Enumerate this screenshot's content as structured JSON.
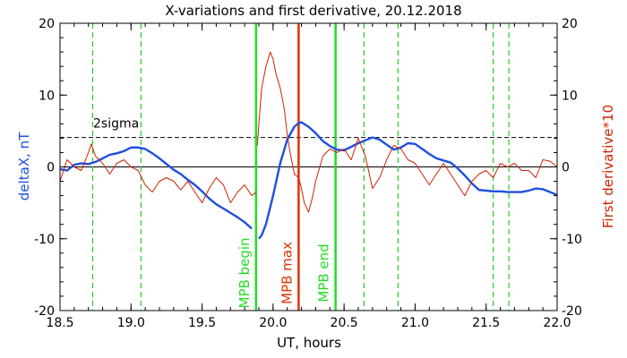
{
  "chart_data": {
    "type": "line",
    "title": "X-variations and first derivative, 20.12.2018",
    "xlabel": "UT, hours",
    "ylabel_left": "deltaX, nT",
    "ylabel_right": "First derivative*10",
    "xlim": [
      18.5,
      22.0
    ],
    "ylim_left": [
      -20,
      20
    ],
    "ylim_right": [
      -20,
      20
    ],
    "x_ticks": [
      "18.5",
      "19.0",
      "19.5",
      "20.0",
      "20.5",
      "21.0",
      "21.5",
      "22.0"
    ],
    "y_ticks_left": [
      "20",
      "10",
      "0",
      "-10",
      "-20"
    ],
    "y_ticks_right": [
      "20",
      "10",
      "0",
      "-10",
      "-20"
    ],
    "threshold": {
      "label": "2sigma",
      "value": 4.1
    },
    "zero_line": 0,
    "series": [
      {
        "color": "#1f4fe0",
        "axis": "left",
        "segments": [
          {
            "x": [
              18.5,
              18.55,
              18.6,
              18.65,
              18.7,
              18.75,
              18.8,
              18.85,
              18.9,
              18.95,
              19.0,
              19.05,
              19.1,
              19.15,
              19.2,
              19.25,
              19.3,
              19.35,
              19.4,
              19.45,
              19.5,
              19.55,
              19.6,
              19.65,
              19.7,
              19.75,
              19.8,
              19.85
            ],
            "y": [
              -0.3,
              -0.5,
              0.3,
              0.5,
              0.4,
              0.7,
              1.2,
              1.7,
              1.9,
              2.2,
              2.7,
              2.7,
              2.5,
              1.9,
              1.2,
              0.4,
              -0.4,
              -1.0,
              -1.8,
              -2.5,
              -3.4,
              -4.4,
              -5.2,
              -5.8,
              -6.4,
              -7.0,
              -7.7,
              -8.6
            ]
          },
          {
            "x": [
              19.9,
              19.92,
              19.95,
              20.0,
              20.05,
              20.1,
              20.15,
              20.18,
              20.2,
              20.25,
              20.3,
              20.35,
              20.4,
              20.45,
              20.5,
              20.55,
              20.6,
              20.65,
              20.7,
              20.75,
              20.8,
              20.85,
              20.9,
              20.95,
              21.0,
              21.05,
              21.1,
              21.15,
              21.2,
              21.25,
              21.3,
              21.35,
              21.4,
              21.45,
              21.5,
              21.55,
              21.6,
              21.65,
              21.7,
              21.75,
              21.8,
              21.85,
              21.9,
              21.95,
              22.0
            ],
            "y": [
              -10.0,
              -9.5,
              -8.0,
              -4.0,
              0.5,
              3.8,
              5.6,
              6.1,
              6.2,
              5.6,
              4.7,
              3.6,
              2.9,
              2.4,
              2.3,
              2.8,
              3.3,
              3.7,
              4.1,
              3.8,
              3.1,
              2.4,
              2.7,
              3.3,
              3.2,
              2.5,
              1.8,
              1.2,
              0.9,
              0.6,
              -0.2,
              -1.2,
              -2.3,
              -3.2,
              -3.3,
              -3.4,
              -3.4,
              -3.5,
              -3.5,
              -3.5,
              -3.3,
              -3.0,
              -3.1,
              -3.5,
              -3.9
            ]
          }
        ]
      },
      {
        "color": "#cc2200",
        "axis": "right",
        "segments": [
          {
            "x": [
              18.5,
              18.55,
              18.6,
              18.65,
              18.7,
              18.72,
              18.75,
              18.8,
              18.85,
              18.9,
              18.95,
              19.0,
              19.05,
              19.1,
              19.15,
              19.2,
              19.25,
              19.3,
              19.35,
              19.4,
              19.45,
              19.5,
              19.55,
              19.6,
              19.65,
              19.7,
              19.75,
              19.8,
              19.85,
              19.88
            ],
            "y": [
              -2.0,
              1.0,
              0.0,
              -0.5,
              2.0,
              3.2,
              1.5,
              0.5,
              -1.0,
              0.5,
              1.0,
              0.0,
              -0.5,
              -2.5,
              -3.5,
              -2.0,
              -1.5,
              -2.0,
              -3.2,
              -2.0,
              -3.5,
              -5.0,
              -3.0,
              -1.5,
              -2.5,
              -5.0,
              -3.5,
              -2.5,
              -4.0,
              -3.5
            ]
          },
          {
            "x": [
              19.89,
              19.9,
              19.92,
              19.95,
              19.98,
              20.0,
              20.02,
              20.05,
              20.08,
              20.1,
              20.12,
              20.15,
              20.18,
              20.2,
              20.22,
              20.25,
              20.28,
              20.3,
              20.35,
              20.4,
              20.45,
              20.5,
              20.55,
              20.6,
              20.65,
              20.7,
              20.75,
              20.8,
              20.85,
              20.9,
              20.95,
              21.0,
              21.05,
              21.1,
              21.15,
              21.2,
              21.25,
              21.3,
              21.35,
              21.4,
              21.45,
              21.5,
              21.55,
              21.6,
              21.65,
              21.7,
              21.75,
              21.8,
              21.85,
              21.9,
              21.95,
              22.0
            ],
            "y": [
              3.0,
              6.0,
              11.0,
              14.0,
              16.0,
              15.0,
              13.0,
              11.0,
              8.0,
              4.5,
              2.0,
              -1.0,
              -1.5,
              -3.0,
              -5.0,
              -6.3,
              -4.0,
              -2.0,
              1.5,
              2.5,
              2.0,
              2.5,
              1.0,
              4.0,
              1.5,
              -3.0,
              -1.5,
              1.0,
              3.0,
              2.5,
              1.0,
              0.5,
              -1.0,
              -2.5,
              -1.0,
              0.5,
              -1.0,
              -2.5,
              -4.0,
              -2.0,
              -1.0,
              -0.5,
              -1.5,
              0.5,
              0.0,
              0.5,
              -0.5,
              -0.5,
              -1.5,
              1.0,
              0.8,
              0.0
            ]
          }
        ]
      }
    ],
    "vertical_markers": [
      {
        "x": 18.73,
        "style": "dashed",
        "color": "#22cc22",
        "label": ""
      },
      {
        "x": 19.07,
        "style": "dashed",
        "color": "#22cc22",
        "label": ""
      },
      {
        "x": 19.88,
        "style": "solid",
        "color": "#22dd22",
        "label": "MPB begin"
      },
      {
        "x": 20.18,
        "style": "solid",
        "color": "#dd3300",
        "label": "MPB max"
      },
      {
        "x": 20.44,
        "style": "solid",
        "color": "#22dd22",
        "label": "MPB end"
      },
      {
        "x": 20.64,
        "style": "dashed",
        "color": "#22cc22",
        "label": ""
      },
      {
        "x": 20.88,
        "style": "dashed",
        "color": "#22cc22",
        "label": ""
      },
      {
        "x": 21.55,
        "style": "dashed",
        "color": "#22cc22",
        "label": ""
      },
      {
        "x": 21.66,
        "style": "dashed",
        "color": "#22cc22",
        "label": ""
      }
    ],
    "colors": {
      "left_axis_label": "#1f4fe0",
      "right_axis_label": "#cc2200"
    }
  }
}
